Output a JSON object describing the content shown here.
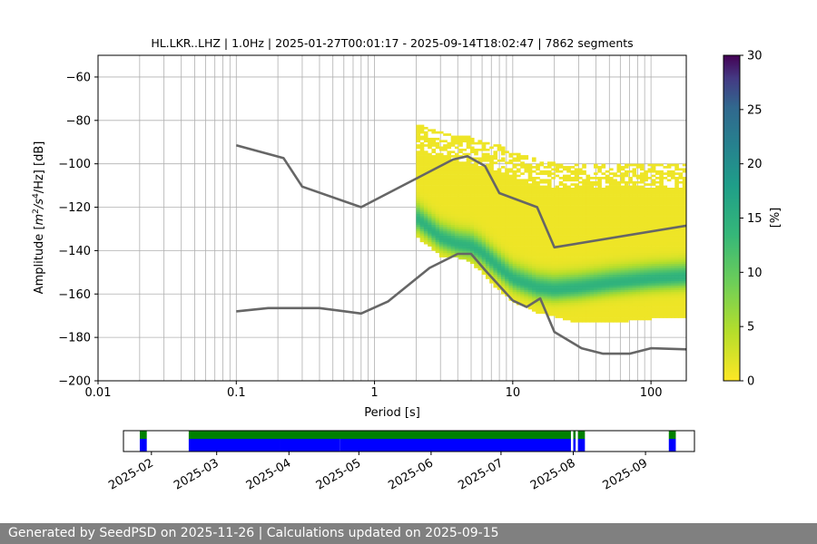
{
  "chart_data": [
    {
      "type": "heatmap",
      "title": "HL.LKR..LHZ | 1.0Hz | 2025-01-27T00:01:17 - 2025-09-14T18:02:47 | 7862 segments",
      "xlabel": "Period [s]",
      "ylabel_parts": [
        "Amplitude [",
        "m",
        "2",
        "/",
        "s",
        "4",
        "/Hz] [dB]"
      ],
      "xscale": "log",
      "xlim": [
        0.01,
        180
      ],
      "ylim": [
        -200,
        -50
      ],
      "xtick_values": [
        0.01,
        0.1,
        1,
        10,
        100
      ],
      "xtick_labels": [
        "0.01",
        "0.1",
        "1",
        "10",
        "100"
      ],
      "ytick_values": [
        -200,
        -180,
        -160,
        -140,
        -120,
        -100,
        -80,
        -60
      ],
      "ytick_labels": [
        "−200",
        "−180",
        "−160",
        "−140",
        "−120",
        "−100",
        "−80",
        "−60"
      ],
      "grid": true,
      "colorbar": {
        "label": "[%]",
        "range": [
          0,
          30
        ],
        "tick_values": [
          0,
          5,
          10,
          15,
          20,
          25,
          30
        ],
        "tick_labels": [
          "0",
          "5",
          "10",
          "15",
          "20",
          "25",
          "30"
        ]
      },
      "density_ridge": {
        "description_period": [
          2,
          3,
          4,
          5,
          6,
          8,
          10,
          15,
          20,
          30,
          50,
          100,
          180
        ],
        "mode_db": [
          -125,
          -134,
          -137,
          -138,
          -141,
          -148,
          -153,
          -157,
          -158,
          -157,
          -155,
          -153,
          -152
        ],
        "upper_db": [
          -82,
          -85,
          -87,
          -88,
          -90,
          -92,
          -95,
          -98,
          -100,
          -100,
          -100,
          -100,
          -100
        ],
        "lower_db": [
          -133,
          -142,
          -143,
          -145,
          -150,
          -158,
          -163,
          -168,
          -170,
          -173,
          -173,
          -171,
          -170
        ]
      },
      "series": [
        {
          "name": "",
          "x": [
            0.1,
            0.22,
            0.3,
            0.8,
            3.7,
            4.7,
            6.3,
            8,
            15,
            20,
            180
          ],
          "y": [
            -91.5,
            -97.4,
            -110.5,
            -120,
            -98,
            -96.5,
            -101,
            -113.5,
            -120,
            -138.5,
            -128.5
          ]
        },
        {
          "name": "",
          "x": [
            0.1,
            0.17,
            0.4,
            0.8,
            1.25,
            2.5,
            4,
            5,
            6.3,
            10,
            12.6,
            15.8,
            20,
            31.5,
            45,
            70,
            100,
            180
          ],
          "y": [
            -168,
            -166.5,
            -166.5,
            -169,
            -163.5,
            -148,
            -141.5,
            -141.5,
            -149,
            -163,
            -166,
            -162,
            -177.5,
            -185,
            -187.5,
            -187.5,
            -185,
            -185.5
          ]
        }
      ]
    },
    {
      "type": "bar",
      "title": "",
      "x_tick_labels": [
        "2025-02",
        "2025-03",
        "2025-04",
        "2025-05",
        "2025-06",
        "2025-07",
        "2025-08",
        "2025-09"
      ],
      "x_tick_dates": [
        "2025-02-01",
        "2025-03-01",
        "2025-04-01",
        "2025-05-01",
        "2025-06-01",
        "2025-07-01",
        "2025-08-01",
        "2025-09-01"
      ],
      "xlim": [
        "2025-01-20",
        "2025-09-22"
      ],
      "series": [
        {
          "name": "",
          "color": "#008000",
          "intervals": [
            [
              "2025-01-27",
              "2025-01-30"
            ],
            [
              "2025-02-17",
              "2025-07-31"
            ],
            [
              "2025-08-01",
              "2025-08-02"
            ],
            [
              "2025-08-03",
              "2025-08-06"
            ],
            [
              "2025-09-11",
              "2025-09-14"
            ]
          ]
        },
        {
          "name": "",
          "color": "#0000ff",
          "intervals": [
            [
              "2025-01-27",
              "2025-01-30"
            ],
            [
              "2025-02-17",
              "2025-03-28"
            ],
            [
              "2025-03-28",
              "2025-04-23"
            ],
            [
              "2025-04-23",
              "2025-07-31"
            ],
            [
              "2025-08-01",
              "2025-08-02"
            ],
            [
              "2025-08-03",
              "2025-08-06"
            ],
            [
              "2025-09-11",
              "2025-09-14"
            ]
          ]
        }
      ]
    }
  ],
  "footer": {
    "text": "Generated by SeedPSD on 2025-11-26 | Calculations updated on 2025-09-15"
  }
}
